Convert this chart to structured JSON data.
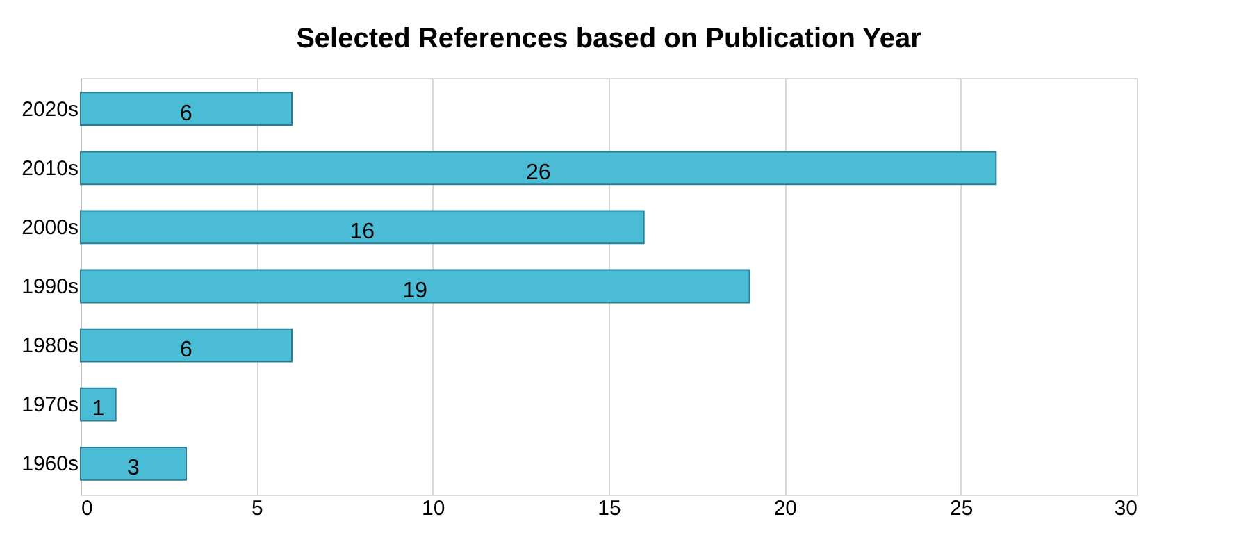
{
  "chart_data": {
    "type": "bar",
    "orientation": "horizontal",
    "title": "Selected References based on Publication Year",
    "categories": [
      "2020s",
      "2010s",
      "2000s",
      "1990s",
      "1980s",
      "1970s",
      "1960s"
    ],
    "values": [
      6,
      26,
      16,
      19,
      6,
      1,
      3
    ],
    "color": "#4bbcd6",
    "xlim": [
      0,
      30
    ],
    "xticks": [
      0,
      5,
      10,
      15,
      20,
      25,
      30
    ],
    "grid": "x",
    "data_labels": true
  }
}
